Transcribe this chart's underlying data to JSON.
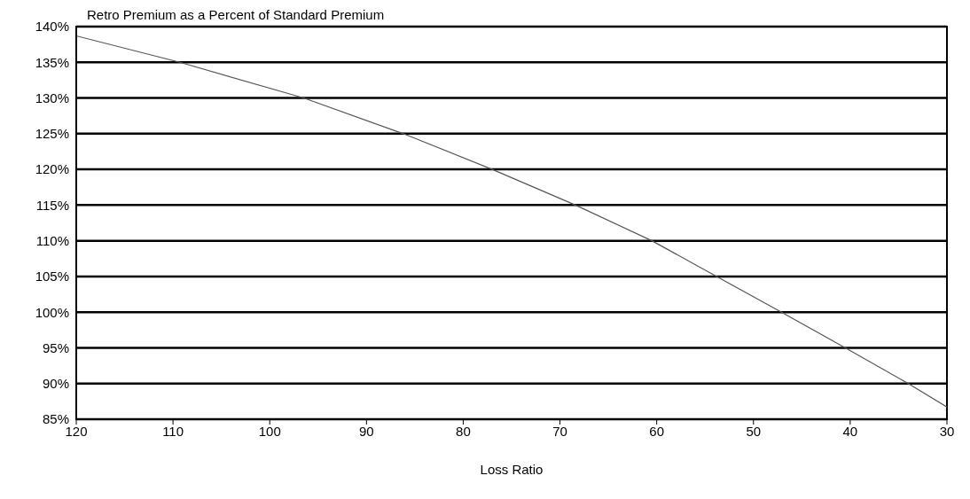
{
  "chart_data": {
    "type": "line",
    "title": "Retro Premium as a Percent of Standard Premium",
    "xlabel": "Loss Ratio",
    "x": [
      120,
      109.3,
      96.5,
      86.2,
      77,
      68.4,
      60.5,
      53.8,
      47.1,
      40.5,
      34,
      30
    ],
    "series": [
      {
        "color": "#555555",
        "values": [
          138.7,
          135,
          130,
          125,
          120,
          115,
          110,
          105,
          100,
          95,
          90,
          86.7
        ]
      }
    ],
    "xlim": [
      120,
      30
    ],
    "xticks": [
      120,
      110,
      100,
      90,
      80,
      70,
      60,
      50,
      40,
      30
    ],
    "ylim": [
      85,
      140
    ],
    "yticks": [
      {
        "value": 85,
        "label": "85%"
      },
      {
        "value": 90,
        "label": "90%"
      },
      {
        "value": 95,
        "label": "95%"
      },
      {
        "value": 100,
        "label": "100%"
      },
      {
        "value": 105,
        "label": "105%"
      },
      {
        "value": 110,
        "label": "110%"
      },
      {
        "value": 115,
        "label": "115%"
      },
      {
        "value": 120,
        "label": "120%"
      },
      {
        "value": 125,
        "label": "125%"
      },
      {
        "value": 130,
        "label": "130%"
      },
      {
        "value": 135,
        "label": "135%"
      },
      {
        "value": 140,
        "label": "140%"
      }
    ],
    "grid": "y",
    "legend": false,
    "marker": "none",
    "line_style": "solid"
  }
}
